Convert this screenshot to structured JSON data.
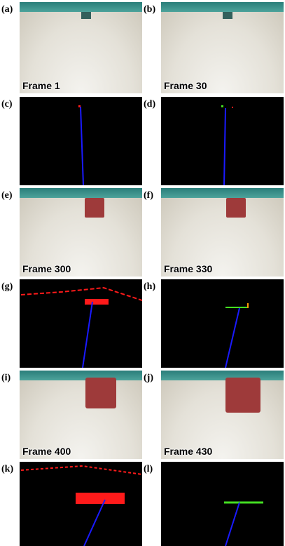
{
  "panels": [
    {
      "letter": "(a)",
      "frame": "Frame 1"
    },
    {
      "letter": "(b)",
      "frame": "Frame 30"
    },
    {
      "letter": "(c)"
    },
    {
      "letter": "(d)"
    },
    {
      "letter": "(e)",
      "frame": "Frame 300"
    },
    {
      "letter": "(f)",
      "frame": "Frame 330"
    },
    {
      "letter": "(g)"
    },
    {
      "letter": "(h)"
    },
    {
      "letter": "(i)",
      "frame": "Frame 400"
    },
    {
      "letter": "(j)",
      "frame": "Frame 430"
    },
    {
      "letter": "(k)"
    },
    {
      "letter": "(l)"
    }
  ],
  "colors": {
    "line": "#1a1aff",
    "red": "#ff1a1a",
    "green": "#44dd22",
    "sky": "#3a8f8a",
    "vehicle": "#9e3a3a"
  }
}
